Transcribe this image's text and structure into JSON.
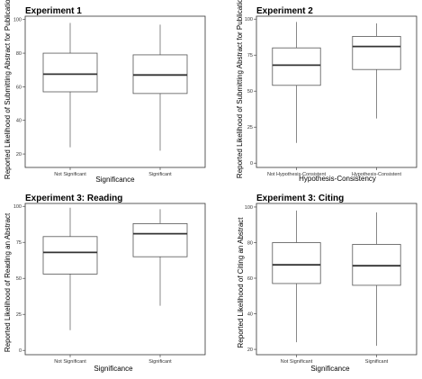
{
  "chart_data": [
    {
      "type": "box",
      "title": "Experiment 1",
      "xlabel": "Significance",
      "ylabel": "Reported Likelihood of Submitting Abstract for Publication",
      "categories": [
        "Not Significant",
        "Significant"
      ],
      "yticks": [
        "20",
        "40",
        "60",
        "80",
        "100"
      ],
      "ylim": [
        12,
        102
      ],
      "boxes": [
        {
          "category": "Not Significant",
          "min": 24,
          "q1": 57,
          "median": 67.5,
          "q3": 80,
          "max": 98
        },
        {
          "category": "Significant",
          "min": 22,
          "q1": 56,
          "median": 67,
          "q3": 79,
          "max": 97
        }
      ],
      "grid": false
    },
    {
      "type": "box",
      "title": "Experiment 2",
      "xlabel": "Hypothesis-Consistency",
      "ylabel": "Reported Likelihood of Submitting Abstract for Publication",
      "categories": [
        "Not Hypothesis-Consistent",
        "Hypothesis-Consistent"
      ],
      "yticks": [
        "0",
        "25",
        "50",
        "75",
        "100"
      ],
      "ylim": [
        -3,
        102
      ],
      "boxes": [
        {
          "category": "Not Hypothesis-Consistent",
          "min": 14,
          "q1": 54,
          "median": 68,
          "q3": 80,
          "max": 98
        },
        {
          "category": "Hypothesis-Consistent",
          "min": 31,
          "q1": 65,
          "median": 81,
          "q3": 88,
          "max": 97
        }
      ],
      "grid": false
    },
    {
      "type": "box",
      "title": "Experiment 3: Reading",
      "xlabel": "Significance",
      "ylabel": "Reported Likelihood of Reading an Abstract",
      "categories": [
        "Not Significant",
        "Significant"
      ],
      "yticks": [
        "0",
        "25",
        "50",
        "75",
        "100"
      ],
      "ylim": [
        -3,
        102
      ],
      "boxes": [
        {
          "category": "Not Significant",
          "min": 14,
          "q1": 53,
          "median": 68,
          "q3": 79,
          "max": 99
        },
        {
          "category": "Significant",
          "min": 31,
          "q1": 65,
          "median": 81,
          "q3": 88,
          "max": 98
        }
      ],
      "grid": false
    },
    {
      "type": "box",
      "title": "Experiment 3: Citing",
      "xlabel": "Significance",
      "ylabel": "Reported Likelihood of Citing an Abstract",
      "categories": [
        "Not Significant",
        "Significant"
      ],
      "yticks": [
        "20",
        "40",
        "60",
        "80",
        "100"
      ],
      "ylim": [
        17,
        102
      ],
      "boxes": [
        {
          "category": "Not Significant",
          "min": 24,
          "q1": 57,
          "median": 67.5,
          "q3": 80,
          "max": 98
        },
        {
          "category": "Significant",
          "min": 22,
          "q1": 56,
          "median": 67,
          "q3": 79,
          "max": 97
        }
      ],
      "grid": false
    }
  ]
}
